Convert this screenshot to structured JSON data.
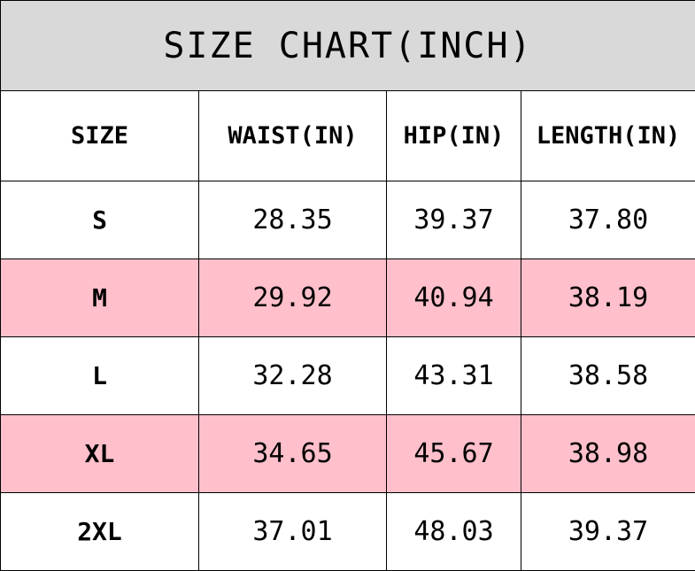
{
  "title": "SIZE CHART(INCH)",
  "colors": {
    "title_bg": "#d9d9d9",
    "highlight_row": "#ffc0cb"
  },
  "headers": [
    "SIZE",
    "WAIST(IN)",
    "HIP(IN)",
    "LENGTH(IN)"
  ],
  "rows": [
    [
      "S",
      "28.35",
      "39.37",
      "37.80"
    ],
    [
      "M",
      "29.92",
      "40.94",
      "38.19"
    ],
    [
      "L",
      "32.28",
      "43.31",
      "38.58"
    ],
    [
      "XL",
      "34.65",
      "45.67",
      "38.98"
    ],
    [
      "2XL",
      "37.01",
      "48.03",
      "39.37"
    ]
  ]
}
